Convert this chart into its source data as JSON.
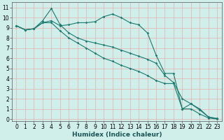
{
  "xlabel": "Humidex (Indice chaleur)",
  "background_color": "#d0eeea",
  "grid_color": "#e8b0b0",
  "line_color": "#1a7a6e",
  "xlim": [
    -0.5,
    23.5
  ],
  "ylim": [
    -0.2,
    11.5
  ],
  "xticks": [
    0,
    1,
    2,
    3,
    4,
    5,
    6,
    7,
    8,
    9,
    10,
    11,
    12,
    13,
    14,
    15,
    16,
    17,
    18,
    19,
    20,
    21,
    22,
    23
  ],
  "yticks": [
    0,
    1,
    2,
    3,
    4,
    5,
    6,
    7,
    8,
    9,
    10,
    11
  ],
  "line1_x": [
    0,
    1,
    2,
    3,
    4,
    5,
    6,
    7,
    8,
    9,
    10,
    11,
    12,
    13,
    14,
    15,
    16,
    17,
    18,
    19,
    20,
    21,
    22,
    23
  ],
  "line1_y": [
    9.2,
    8.8,
    8.9,
    9.5,
    9.7,
    9.2,
    9.3,
    9.5,
    9.5,
    9.6,
    10.1,
    10.35,
    10.0,
    9.5,
    9.3,
    8.5,
    6.3,
    4.5,
    4.5,
    1.0,
    1.5,
    1.0,
    0.2,
    0.05
  ],
  "line2_x": [
    0,
    1,
    2,
    3,
    4,
    5,
    6,
    7,
    8,
    9,
    10,
    11,
    12,
    13,
    14,
    15,
    16,
    17,
    18,
    19,
    20,
    21,
    22,
    23
  ],
  "line2_y": [
    9.2,
    8.8,
    8.9,
    9.7,
    10.9,
    9.3,
    8.5,
    8.0,
    7.7,
    7.5,
    7.3,
    7.1,
    6.8,
    6.5,
    6.2,
    5.9,
    5.5,
    4.3,
    3.6,
    2.0,
    1.5,
    0.9,
    0.2,
    0.05
  ],
  "line3_x": [
    0,
    1,
    2,
    3,
    4,
    5,
    6,
    7,
    8,
    9,
    10,
    11,
    12,
    13,
    14,
    15,
    16,
    17,
    18,
    19,
    20,
    21,
    22,
    23
  ],
  "line3_y": [
    9.2,
    8.8,
    8.9,
    9.5,
    9.5,
    8.7,
    8.0,
    7.5,
    7.0,
    6.5,
    6.0,
    5.7,
    5.3,
    5.0,
    4.7,
    4.3,
    3.8,
    3.5,
    3.5,
    1.0,
    1.0,
    0.5,
    0.1,
    0.0
  ],
  "marker": "D",
  "markersize": 1.8,
  "linewidth": 0.8,
  "tick_fontsize": 5.5,
  "xlabel_fontsize": 6.5
}
